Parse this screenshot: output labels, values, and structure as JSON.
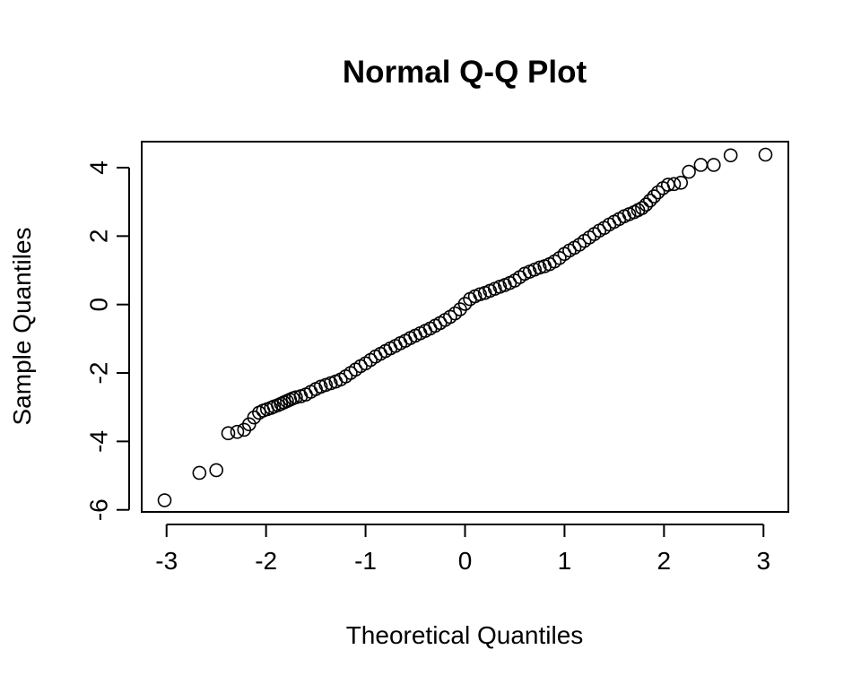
{
  "chart_data": {
    "type": "scatter",
    "title": "Normal Q-Q Plot",
    "xlabel": "Theoretical Quantiles",
    "ylabel": "Sample Quantiles",
    "xlim": [
      -3.25,
      3.25
    ],
    "ylim": [
      -6.06,
      4.76
    ],
    "x_ticks": [
      -3,
      -2,
      -1,
      0,
      1,
      2,
      3
    ],
    "x_tick_labels": [
      "-3",
      "-2",
      "-1",
      "0",
      "1",
      "2",
      "3"
    ],
    "y_ticks": [
      -6,
      -4,
      -2,
      0,
      2,
      4
    ],
    "y_tick_labels": [
      "-6",
      "-4",
      "-2",
      "0",
      "2",
      "4"
    ],
    "grid": false,
    "legend": false,
    "marker": "open-circle",
    "point_color": "#000000",
    "points": [
      [
        -3.02,
        -5.72
      ],
      [
        -2.67,
        -4.92
      ],
      [
        -2.5,
        -4.84
      ],
      [
        -2.38,
        -3.76
      ],
      [
        -2.29,
        -3.72
      ],
      [
        -2.22,
        -3.66
      ],
      [
        -2.17,
        -3.5
      ],
      [
        -2.12,
        -3.3
      ],
      [
        -2.07,
        -3.16
      ],
      [
        -2.03,
        -3.1
      ],
      [
        -1.99,
        -3.06
      ],
      [
        -1.95,
        -3.02
      ],
      [
        -1.92,
        -2.98
      ],
      [
        -1.88,
        -2.94
      ],
      [
        -1.85,
        -2.9
      ],
      [
        -1.82,
        -2.86
      ],
      [
        -1.79,
        -2.82
      ],
      [
        -1.76,
        -2.78
      ],
      [
        -1.73,
        -2.74
      ],
      [
        -1.7,
        -2.71
      ],
      [
        -1.65,
        -2.68
      ],
      [
        -1.6,
        -2.63
      ],
      [
        -1.55,
        -2.55
      ],
      [
        -1.5,
        -2.47
      ],
      [
        -1.45,
        -2.4
      ],
      [
        -1.4,
        -2.35
      ],
      [
        -1.35,
        -2.3
      ],
      [
        -1.3,
        -2.25
      ],
      [
        -1.25,
        -2.19
      ],
      [
        -1.2,
        -2.1
      ],
      [
        -1.15,
        -2.0
      ],
      [
        -1.1,
        -1.9
      ],
      [
        -1.05,
        -1.8
      ],
      [
        -1.0,
        -1.72
      ],
      [
        -0.95,
        -1.62
      ],
      [
        -0.9,
        -1.52
      ],
      [
        -0.85,
        -1.44
      ],
      [
        -0.8,
        -1.36
      ],
      [
        -0.75,
        -1.28
      ],
      [
        -0.7,
        -1.21
      ],
      [
        -0.65,
        -1.13
      ],
      [
        -0.6,
        -1.06
      ],
      [
        -0.55,
        -0.98
      ],
      [
        -0.5,
        -0.91
      ],
      [
        -0.45,
        -0.84
      ],
      [
        -0.4,
        -0.77
      ],
      [
        -0.35,
        -0.7
      ],
      [
        -0.3,
        -0.62
      ],
      [
        -0.25,
        -0.54
      ],
      [
        -0.2,
        -0.45
      ],
      [
        -0.15,
        -0.36
      ],
      [
        -0.1,
        -0.26
      ],
      [
        -0.05,
        -0.14
      ],
      [
        0.0,
        0.02
      ],
      [
        0.05,
        0.16
      ],
      [
        0.1,
        0.24
      ],
      [
        0.15,
        0.3
      ],
      [
        0.2,
        0.34
      ],
      [
        0.25,
        0.4
      ],
      [
        0.3,
        0.46
      ],
      [
        0.35,
        0.52
      ],
      [
        0.4,
        0.57
      ],
      [
        0.45,
        0.63
      ],
      [
        0.5,
        0.7
      ],
      [
        0.55,
        0.8
      ],
      [
        0.6,
        0.9
      ],
      [
        0.65,
        0.96
      ],
      [
        0.7,
        1.02
      ],
      [
        0.75,
        1.08
      ],
      [
        0.8,
        1.12
      ],
      [
        0.85,
        1.18
      ],
      [
        0.9,
        1.26
      ],
      [
        0.95,
        1.36
      ],
      [
        1.0,
        1.48
      ],
      [
        1.05,
        1.58
      ],
      [
        1.1,
        1.66
      ],
      [
        1.15,
        1.75
      ],
      [
        1.2,
        1.86
      ],
      [
        1.25,
        1.96
      ],
      [
        1.3,
        2.06
      ],
      [
        1.35,
        2.16
      ],
      [
        1.4,
        2.24
      ],
      [
        1.45,
        2.34
      ],
      [
        1.5,
        2.42
      ],
      [
        1.55,
        2.5
      ],
      [
        1.6,
        2.58
      ],
      [
        1.65,
        2.64
      ],
      [
        1.7,
        2.7
      ],
      [
        1.74,
        2.76
      ],
      [
        1.78,
        2.82
      ],
      [
        1.82,
        2.92
      ],
      [
        1.86,
        3.04
      ],
      [
        1.9,
        3.16
      ],
      [
        1.94,
        3.28
      ],
      [
        1.99,
        3.4
      ],
      [
        2.04,
        3.5
      ],
      [
        2.1,
        3.52
      ],
      [
        2.17,
        3.56
      ],
      [
        2.25,
        3.88
      ],
      [
        2.37,
        4.08
      ],
      [
        2.5,
        4.08
      ],
      [
        2.67,
        4.36
      ],
      [
        3.02,
        4.38
      ]
    ]
  }
}
